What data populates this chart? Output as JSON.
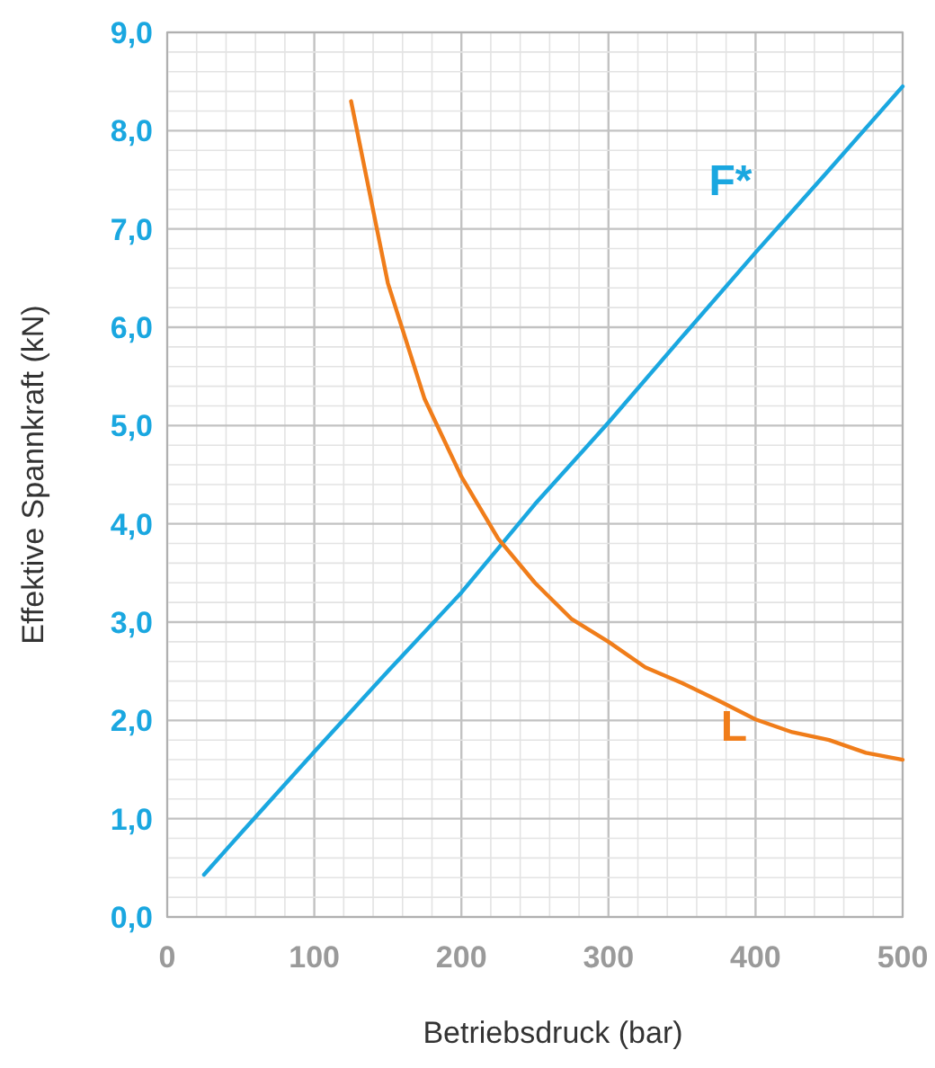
{
  "chart_data": {
    "type": "line",
    "xlabel": "Betriebsdruck (bar)",
    "ylabel": "Effektive Spannkraft  (kN)",
    "xlim": [
      0,
      500
    ],
    "ylim": [
      0,
      9
    ],
    "xticks": [
      0,
      {
        "value": 20,
        "label": null
      },
      {
        "value": 40,
        "label": null
      },
      {
        "value": 60,
        "label": null
      },
      {
        "value": 80,
        "label": null
      },
      100,
      {
        "value": 120,
        "label": null
      },
      {
        "value": 140,
        "label": null
      },
      {
        "value": 160,
        "label": null
      },
      {
        "value": 180,
        "label": null
      },
      200,
      {
        "value": 220,
        "label": null
      },
      {
        "value": 240,
        "label": null
      },
      {
        "value": 260,
        "label": null
      },
      {
        "value": 280,
        "label": null
      },
      300,
      {
        "value": 320,
        "label": null
      },
      {
        "value": 340,
        "label": null
      },
      {
        "value": 360,
        "label": null
      },
      {
        "value": 380,
        "label": null
      },
      400,
      {
        "value": 420,
        "label": null
      },
      {
        "value": 440,
        "label": null
      },
      {
        "value": 460,
        "label": null
      },
      {
        "value": 480,
        "label": null
      },
      500
    ],
    "yticks": [
      {
        "value": 0,
        "label": "0,0"
      },
      {
        "value": 0.2,
        "label": null
      },
      {
        "value": 0.4,
        "label": null
      },
      {
        "value": 0.6,
        "label": null
      },
      {
        "value": 0.8,
        "label": null
      },
      {
        "value": 1,
        "label": "1,0"
      },
      {
        "value": 1.2,
        "label": null
      },
      {
        "value": 1.4,
        "label": null
      },
      {
        "value": 1.6,
        "label": null
      },
      {
        "value": 1.8,
        "label": null
      },
      {
        "value": 2,
        "label": "2,0"
      },
      {
        "value": 2.2,
        "label": null
      },
      {
        "value": 2.4,
        "label": null
      },
      {
        "value": 2.6,
        "label": null
      },
      {
        "value": 2.8,
        "label": null
      },
      {
        "value": 3,
        "label": "3,0"
      },
      {
        "value": 3.2,
        "label": null
      },
      {
        "value": 3.4,
        "label": null
      },
      {
        "value": 3.6,
        "label": null
      },
      {
        "value": 3.8,
        "label": null
      },
      {
        "value": 4,
        "label": "4,0"
      },
      {
        "value": 4.2,
        "label": null
      },
      {
        "value": 4.4,
        "label": null
      },
      {
        "value": 4.6,
        "label": null
      },
      {
        "value": 4.8,
        "label": null
      },
      {
        "value": 5,
        "label": "5,0"
      },
      {
        "value": 5.2,
        "label": null
      },
      {
        "value": 5.4,
        "label": null
      },
      {
        "value": 5.6,
        "label": null
      },
      {
        "value": 5.8,
        "label": null
      },
      {
        "value": 6,
        "label": "6,0"
      },
      {
        "value": 6.2,
        "label": null
      },
      {
        "value": 6.4,
        "label": null
      },
      {
        "value": 6.6,
        "label": null
      },
      {
        "value": 6.8,
        "label": null
      },
      {
        "value": 7,
        "label": "7,0"
      },
      {
        "value": 7.2,
        "label": null
      },
      {
        "value": 7.4,
        "label": null
      },
      {
        "value": 7.6,
        "label": null
      },
      {
        "value": 7.8,
        "label": null
      },
      {
        "value": 8,
        "label": "8,0"
      },
      {
        "value": 8.2,
        "label": null
      },
      {
        "value": 8.4,
        "label": null
      },
      {
        "value": 8.6,
        "label": null
      },
      {
        "value": 8.8,
        "label": null
      },
      {
        "value": 9,
        "label": "9,0"
      }
    ],
    "grid": true,
    "legend": false,
    "marker": "none",
    "line_style": "solid",
    "series": [
      {
        "name": "F*",
        "color": "#1aa7e0",
        "x": [
          25,
          50,
          100,
          150,
          200,
          250,
          300,
          350,
          400,
          450,
          500
        ],
        "values": [
          0.43,
          0.85,
          1.68,
          2.5,
          3.3,
          4.2,
          5.03,
          5.9,
          6.76,
          7.6,
          8.45
        ]
      },
      {
        "name": "L",
        "color": "#f07d1a",
        "x": [
          125,
          150,
          175,
          200,
          225,
          250,
          275,
          300,
          325,
          350,
          375,
          400,
          425,
          450,
          475,
          500
        ],
        "values": [
          8.3,
          6.45,
          5.27,
          4.48,
          3.85,
          3.4,
          3.03,
          2.8,
          2.54,
          2.38,
          2.2,
          2.01,
          1.88,
          1.8,
          1.67,
          1.6
        ]
      }
    ]
  }
}
